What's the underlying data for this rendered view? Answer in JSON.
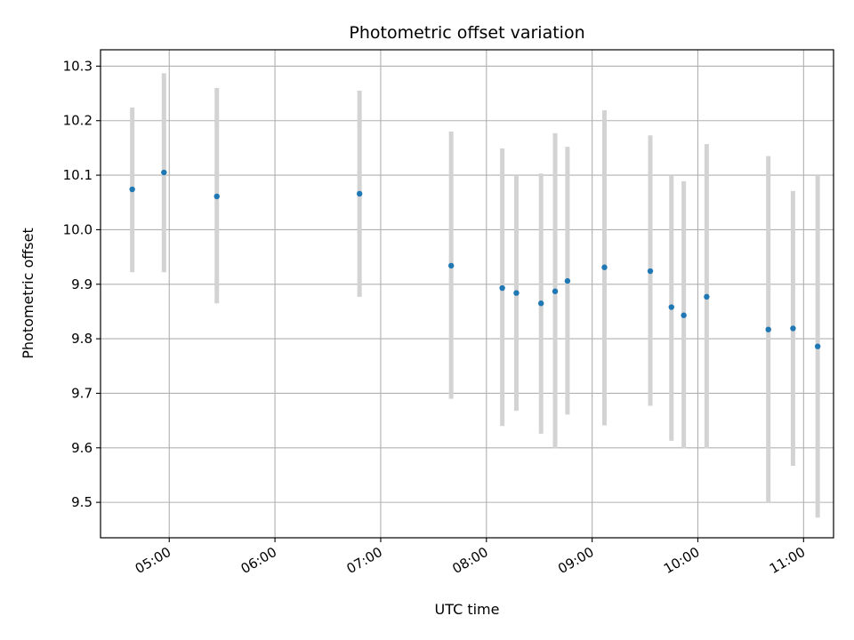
{
  "chart_data": {
    "type": "scatter",
    "title": "Photometric offset variation",
    "xlabel": "UTC time",
    "ylabel": "Photometric offset",
    "xlim": [
      "04:21",
      "11:17"
    ],
    "ylim": [
      9.435,
      10.33
    ],
    "grid": true,
    "x_ticks": [
      "05:00",
      "06:00",
      "07:00",
      "08:00",
      "09:00",
      "10:00",
      "11:00"
    ],
    "y_ticks": [
      9.5,
      9.6,
      9.7,
      9.8,
      9.9,
      10.0,
      10.1,
      10.2,
      10.3
    ],
    "y_tick_labels": [
      "9.5",
      "9.6",
      "9.7",
      "9.8",
      "9.9",
      "10.0",
      "10.1",
      "10.2",
      "10.3"
    ],
    "colors": {
      "points": "#1f77b4",
      "error_bars": "#d3d3d3",
      "grid": "#b0b0b0"
    },
    "series": [
      {
        "x": [
          "04:39",
          "04:57",
          "05:27",
          "06:48",
          "07:40",
          "08:09",
          "08:17",
          "08:31",
          "08:39",
          "08:46",
          "09:07",
          "09:33",
          "09:45",
          "09:52",
          "10:05",
          "10:40",
          "10:54",
          "11:08"
        ],
        "y": [
          10.074,
          10.105,
          10.061,
          10.066,
          9.934,
          9.893,
          9.884,
          9.865,
          9.887,
          9.906,
          9.931,
          9.924,
          9.858,
          9.843,
          9.877,
          9.817,
          9.819,
          9.786
        ],
        "y_low": [
          9.922,
          9.922,
          9.865,
          9.877,
          9.69,
          9.64,
          9.668,
          9.626,
          9.599,
          9.661,
          9.641,
          9.677,
          9.613,
          9.599,
          9.599,
          9.5,
          9.567,
          9.472
        ],
        "y_high": [
          10.224,
          10.287,
          10.26,
          10.255,
          10.18,
          10.149,
          10.1,
          10.103,
          10.177,
          10.152,
          10.219,
          10.173,
          10.1,
          10.089,
          10.157,
          10.135,
          10.071,
          10.1
        ]
      }
    ]
  }
}
